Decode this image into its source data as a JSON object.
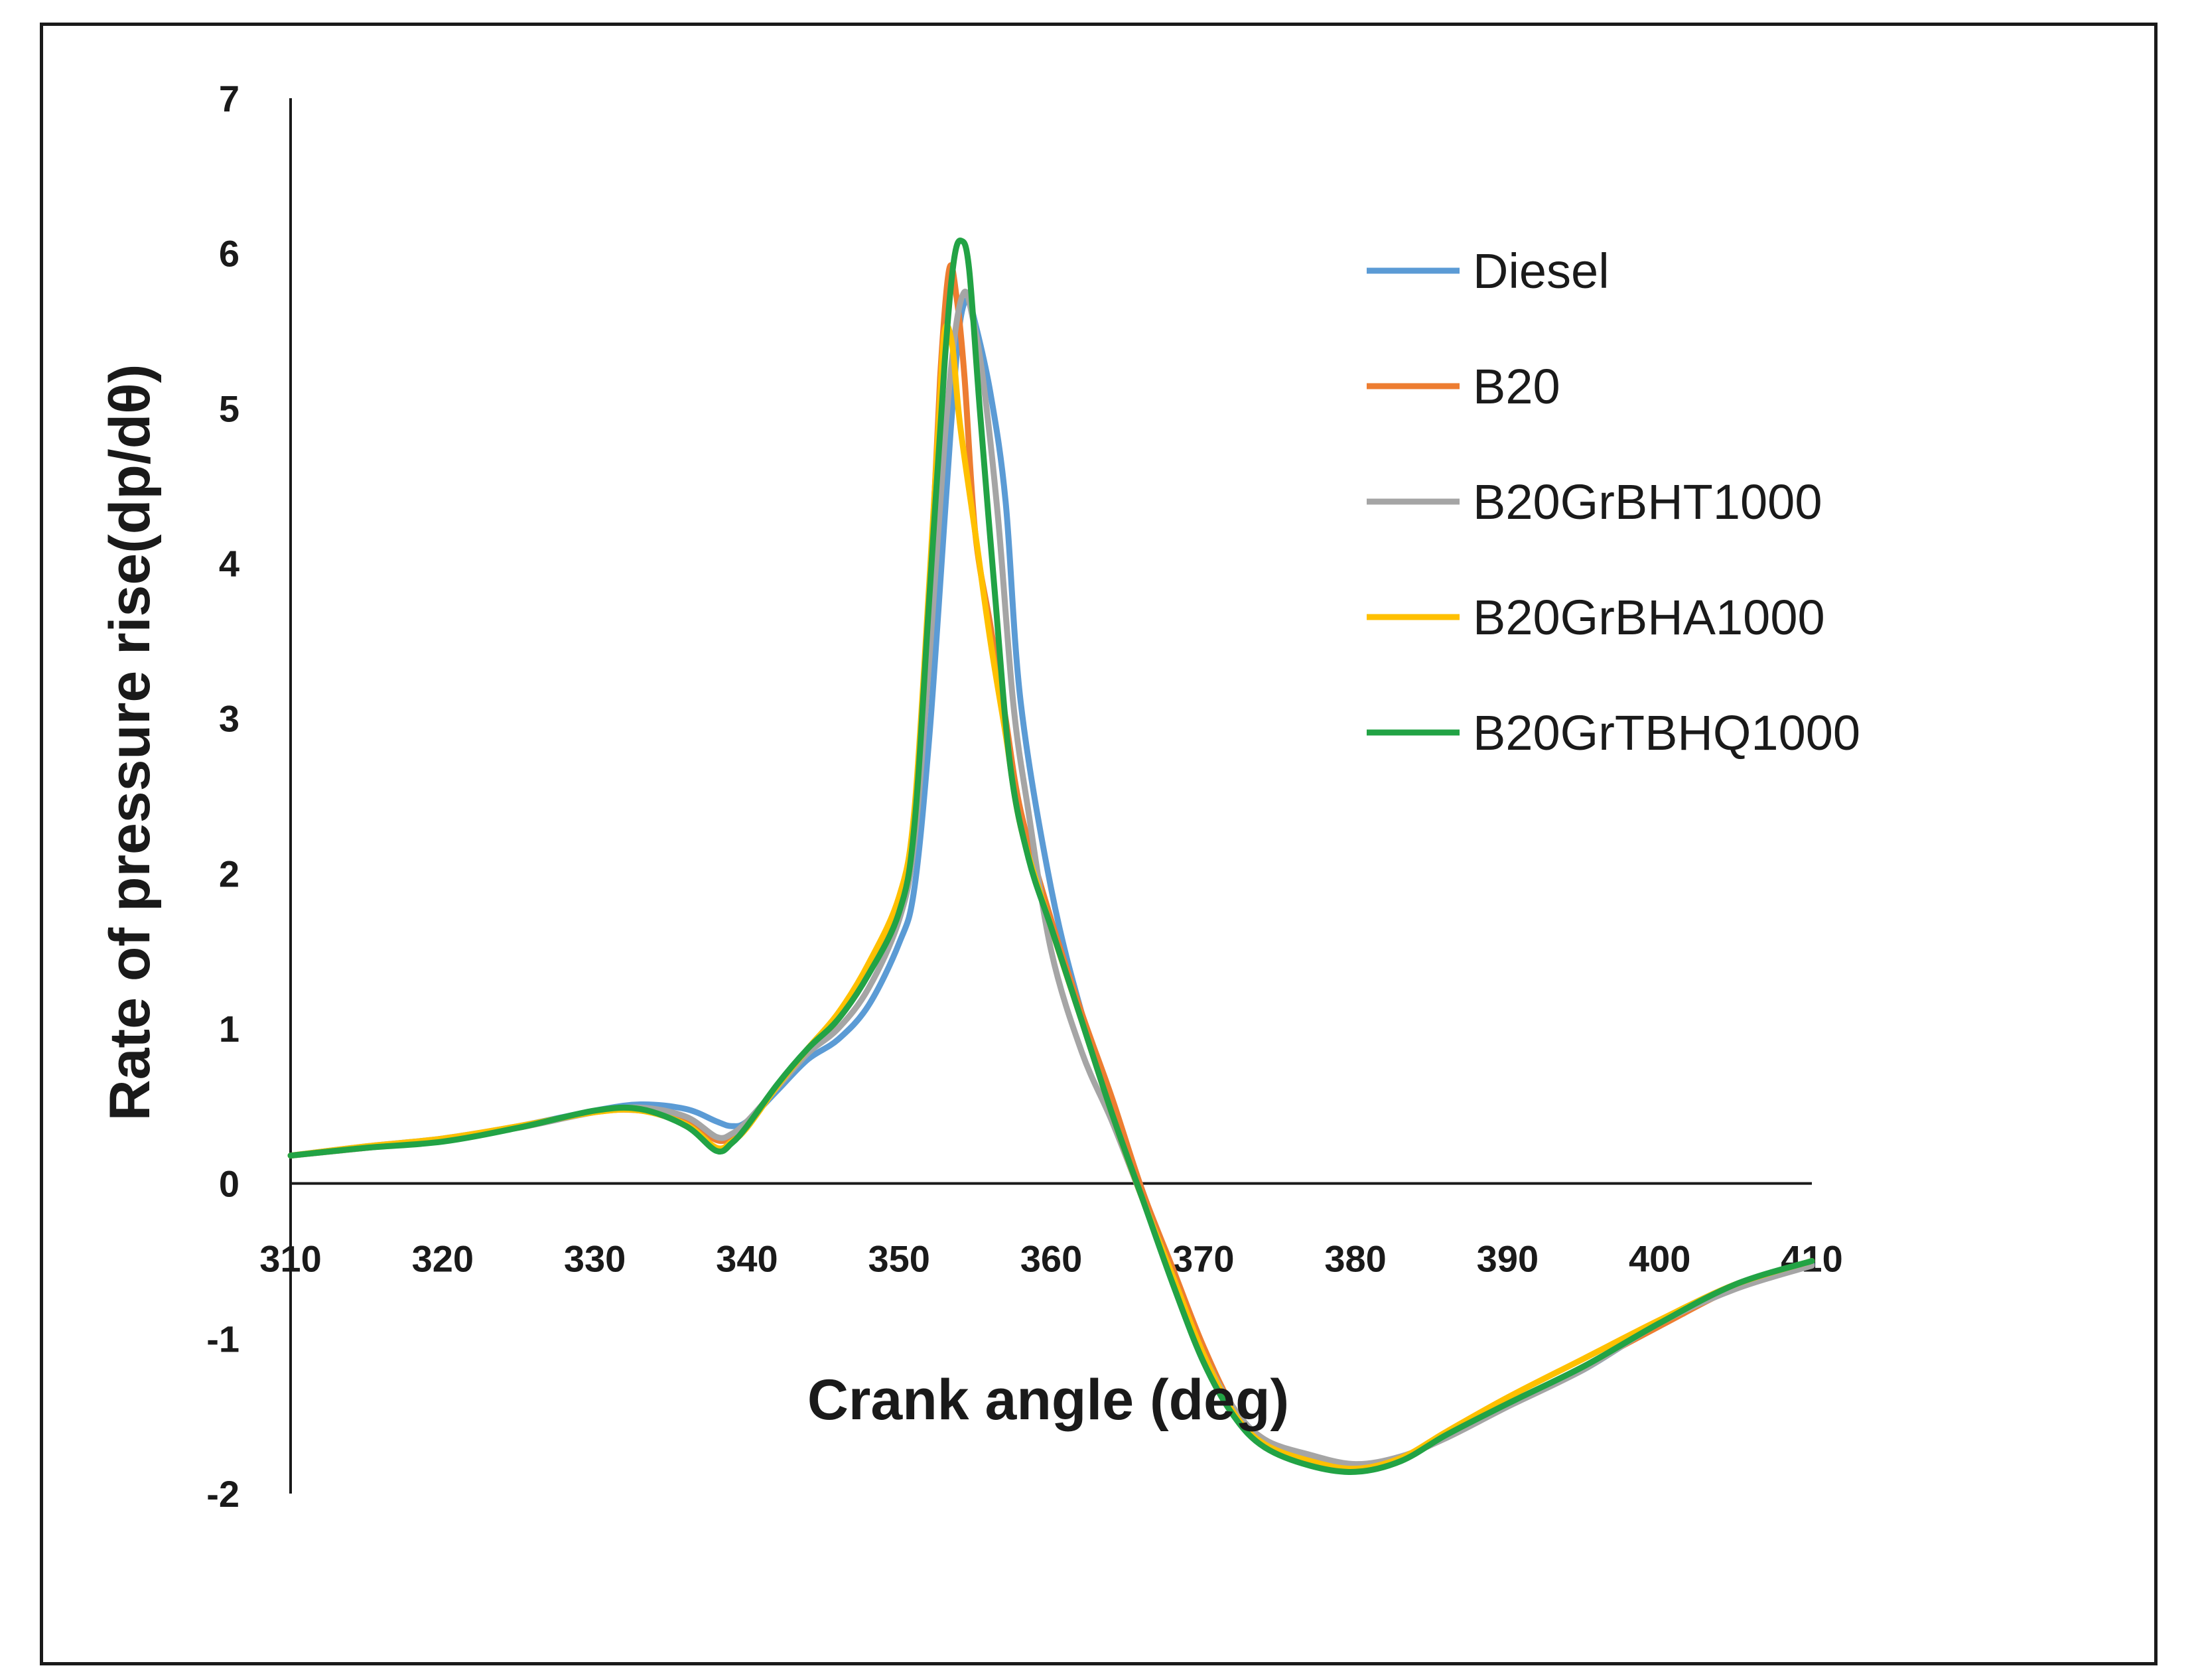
{
  "chart_data": {
    "type": "line",
    "title": "",
    "xlabel": "Crank angle (deg)",
    "ylabel": "Rate of pressure rise(dp/dθ)",
    "xlim": [
      310,
      410
    ],
    "ylim": [
      -2,
      7
    ],
    "x_ticks": [
      "310",
      "320",
      "330",
      "340",
      "350",
      "360",
      "370",
      "380",
      "390",
      "400",
      "410"
    ],
    "y_ticks": [
      "-2",
      "-1",
      "0",
      "1",
      "2",
      "3",
      "4",
      "5",
      "6",
      "7"
    ],
    "grid": false,
    "legend_position": "right",
    "series": [
      {
        "name": "Diesel",
        "color": "#5B9BD5",
        "points": [
          [
            310,
            0.18
          ],
          [
            315,
            0.24
          ],
          [
            320,
            0.29
          ],
          [
            325,
            0.37
          ],
          [
            330,
            0.47
          ],
          [
            333,
            0.51
          ],
          [
            336,
            0.48
          ],
          [
            338,
            0.4
          ],
          [
            339,
            0.37
          ],
          [
            340,
            0.4
          ],
          [
            342,
            0.6
          ],
          [
            344,
            0.8
          ],
          [
            346,
            0.93
          ],
          [
            348,
            1.15
          ],
          [
            350,
            1.55
          ],
          [
            351,
            1.9
          ],
          [
            352,
            2.9
          ],
          [
            353,
            4.3
          ],
          [
            353.5,
            5.0
          ],
          [
            354,
            5.55
          ],
          [
            354.5,
            5.7
          ],
          [
            355,
            5.55
          ],
          [
            356,
            5.1
          ],
          [
            357,
            4.4
          ],
          [
            358,
            3.1
          ],
          [
            360,
            1.9
          ],
          [
            362,
            1.1
          ],
          [
            364,
            0.5
          ],
          [
            366,
            -0.05
          ],
          [
            368,
            -0.6
          ],
          [
            370,
            -1.1
          ],
          [
            372,
            -1.45
          ],
          [
            374,
            -1.65
          ],
          [
            377,
            -1.76
          ],
          [
            380,
            -1.82
          ],
          [
            383,
            -1.77
          ],
          [
            386,
            -1.63
          ],
          [
            390,
            -1.43
          ],
          [
            395,
            -1.2
          ],
          [
            400,
            -0.9
          ],
          [
            405,
            -0.67
          ],
          [
            410,
            -0.52
          ]
        ]
      },
      {
        "name": "B20",
        "color": "#ED7D31",
        "points": [
          [
            310,
            0.18
          ],
          [
            315,
            0.23
          ],
          [
            320,
            0.28
          ],
          [
            325,
            0.36
          ],
          [
            330,
            0.46
          ],
          [
            333,
            0.47
          ],
          [
            336,
            0.4
          ],
          [
            338,
            0.28
          ],
          [
            339,
            0.3
          ],
          [
            340,
            0.38
          ],
          [
            342,
            0.63
          ],
          [
            344,
            0.86
          ],
          [
            346,
            1.06
          ],
          [
            348,
            1.36
          ],
          [
            350,
            1.75
          ],
          [
            351,
            2.3
          ],
          [
            352,
            3.8
          ],
          [
            352.7,
            5.2
          ],
          [
            353.3,
            5.9
          ],
          [
            353.8,
            5.7
          ],
          [
            354.3,
            5.2
          ],
          [
            355,
            4.2
          ],
          [
            356,
            3.6
          ],
          [
            357,
            3.0
          ],
          [
            358,
            2.4
          ],
          [
            360,
            1.7
          ],
          [
            362,
            1.1
          ],
          [
            364,
            0.55
          ],
          [
            366,
            -0.05
          ],
          [
            368,
            -0.55
          ],
          [
            370,
            -1.05
          ],
          [
            372,
            -1.45
          ],
          [
            374,
            -1.65
          ],
          [
            377,
            -1.77
          ],
          [
            380,
            -1.83
          ],
          [
            383,
            -1.77
          ],
          [
            386,
            -1.62
          ],
          [
            390,
            -1.43
          ],
          [
            395,
            -1.18
          ],
          [
            400,
            -0.92
          ],
          [
            405,
            -0.67
          ],
          [
            410,
            -0.5
          ]
        ]
      },
      {
        "name": "B20GrBHT1000",
        "color": "#A5A5A5",
        "points": [
          [
            310,
            0.18
          ],
          [
            315,
            0.23
          ],
          [
            320,
            0.28
          ],
          [
            325,
            0.36
          ],
          [
            330,
            0.46
          ],
          [
            333,
            0.49
          ],
          [
            336,
            0.43
          ],
          [
            338,
            0.3
          ],
          [
            339,
            0.32
          ],
          [
            340,
            0.4
          ],
          [
            342,
            0.62
          ],
          [
            344,
            0.84
          ],
          [
            346,
            1.0
          ],
          [
            348,
            1.26
          ],
          [
            350,
            1.7
          ],
          [
            351,
            2.2
          ],
          [
            352,
            3.4
          ],
          [
            353,
            4.8
          ],
          [
            353.7,
            5.5
          ],
          [
            354.3,
            5.75
          ],
          [
            354.8,
            5.6
          ],
          [
            355.5,
            5.2
          ],
          [
            356.5,
            4.3
          ],
          [
            357.5,
            3.1
          ],
          [
            358.5,
            2.4
          ],
          [
            360,
            1.5
          ],
          [
            362,
            0.85
          ],
          [
            364,
            0.4
          ],
          [
            366,
            -0.1
          ],
          [
            368,
            -0.6
          ],
          [
            370,
            -1.1
          ],
          [
            372,
            -1.45
          ],
          [
            374,
            -1.65
          ],
          [
            377,
            -1.75
          ],
          [
            380,
            -1.81
          ],
          [
            383,
            -1.76
          ],
          [
            386,
            -1.64
          ],
          [
            390,
            -1.44
          ],
          [
            395,
            -1.2
          ],
          [
            400,
            -0.9
          ],
          [
            405,
            -0.68
          ],
          [
            410,
            -0.53
          ]
        ]
      },
      {
        "name": "B20GrBHA1000",
        "color": "#FFC000",
        "points": [
          [
            310,
            0.18
          ],
          [
            315,
            0.24
          ],
          [
            320,
            0.29
          ],
          [
            325,
            0.37
          ],
          [
            330,
            0.46
          ],
          [
            333,
            0.47
          ],
          [
            336,
            0.38
          ],
          [
            338,
            0.23
          ],
          [
            339,
            0.27
          ],
          [
            340,
            0.36
          ],
          [
            342,
            0.63
          ],
          [
            344,
            0.87
          ],
          [
            346,
            1.1
          ],
          [
            348,
            1.42
          ],
          [
            350,
            1.85
          ],
          [
            351,
            2.4
          ],
          [
            352,
            3.9
          ],
          [
            352.6,
            4.9
          ],
          [
            353,
            5.5
          ],
          [
            353.5,
            5.4
          ],
          [
            354,
            4.9
          ],
          [
            355,
            4.2
          ],
          [
            356,
            3.5
          ],
          [
            357,
            2.9
          ],
          [
            358,
            2.3
          ],
          [
            360,
            1.65
          ],
          [
            362,
            1.05
          ],
          [
            364,
            0.45
          ],
          [
            366,
            -0.1
          ],
          [
            368,
            -0.6
          ],
          [
            370,
            -1.1
          ],
          [
            372,
            -1.48
          ],
          [
            374,
            -1.68
          ],
          [
            377,
            -1.79
          ],
          [
            380,
            -1.84
          ],
          [
            383,
            -1.77
          ],
          [
            386,
            -1.6
          ],
          [
            390,
            -1.38
          ],
          [
            395,
            -1.13
          ],
          [
            400,
            -0.88
          ],
          [
            405,
            -0.65
          ],
          [
            410,
            -0.5
          ]
        ]
      },
      {
        "name": "B20GrTBHQ1000",
        "color": "#22A345",
        "points": [
          [
            310,
            0.18
          ],
          [
            315,
            0.23
          ],
          [
            320,
            0.27
          ],
          [
            325,
            0.36
          ],
          [
            330,
            0.47
          ],
          [
            333,
            0.48
          ],
          [
            336,
            0.37
          ],
          [
            338,
            0.21
          ],
          [
            339,
            0.26
          ],
          [
            340,
            0.37
          ],
          [
            342,
            0.64
          ],
          [
            344,
            0.87
          ],
          [
            346,
            1.06
          ],
          [
            348,
            1.35
          ],
          [
            350,
            1.75
          ],
          [
            351,
            2.3
          ],
          [
            352,
            3.8
          ],
          [
            353,
            5.3
          ],
          [
            353.6,
            5.95
          ],
          [
            354.1,
            6.08
          ],
          [
            354.6,
            5.9
          ],
          [
            355.3,
            5.0
          ],
          [
            356.3,
            3.8
          ],
          [
            357.3,
            2.7
          ],
          [
            358.5,
            2.1
          ],
          [
            360,
            1.65
          ],
          [
            362,
            1.05
          ],
          [
            364,
            0.45
          ],
          [
            366,
            -0.1
          ],
          [
            368,
            -0.65
          ],
          [
            370,
            -1.15
          ],
          [
            372,
            -1.5
          ],
          [
            374,
            -1.7
          ],
          [
            377,
            -1.82
          ],
          [
            380,
            -1.86
          ],
          [
            383,
            -1.79
          ],
          [
            386,
            -1.62
          ],
          [
            390,
            -1.42
          ],
          [
            395,
            -1.18
          ],
          [
            400,
            -0.9
          ],
          [
            405,
            -0.65
          ],
          [
            410,
            -0.5
          ]
        ]
      }
    ]
  }
}
